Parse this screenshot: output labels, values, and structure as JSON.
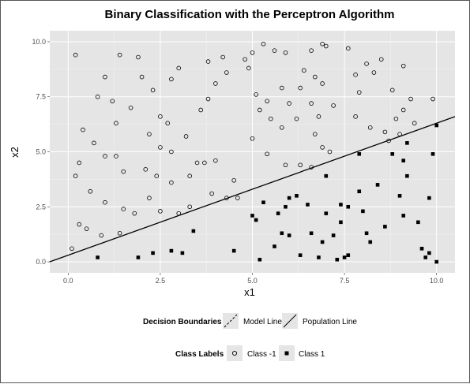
{
  "chart_data": {
    "type": "scatter",
    "title": "Binary Classification with the Perceptron Algorithm",
    "xlabel": "x1",
    "ylabel": "x2",
    "xlim": [
      -0.5,
      10.5
    ],
    "ylim": [
      -0.5,
      10.5
    ],
    "x_ticks": [
      0.0,
      2.5,
      5.0,
      7.5,
      10.0
    ],
    "y_ticks": [
      0.0,
      2.5,
      5.0,
      7.5,
      10.0
    ],
    "x_tick_labels": [
      "0.0",
      "2.5",
      "5.0",
      "7.5",
      "10.0"
    ],
    "y_tick_labels": [
      "0.0",
      "2.5",
      "5.0",
      "7.5",
      "10.0"
    ],
    "grid": true,
    "background": "#e5e5e5",
    "lines": [
      {
        "name": "Population Line",
        "style": "solid",
        "slope": 0.6,
        "intercept": 0.3,
        "color": "#000000"
      }
    ],
    "legends": [
      {
        "title": "Decision Boundaries",
        "entries": [
          "Model Line",
          "Population Line"
        ],
        "placement": "bottom"
      },
      {
        "title": "Class Labels",
        "entries": [
          "Class -1",
          "Class 1"
        ],
        "placement": "bottom"
      }
    ],
    "series": [
      {
        "name": "Class -1",
        "marker": "open-circle",
        "points": [
          [
            0.2,
            9.4
          ],
          [
            1.0,
            8.4
          ],
          [
            0.8,
            7.5
          ],
          [
            1.2,
            7.3
          ],
          [
            1.3,
            6.3
          ],
          [
            1.7,
            7.0
          ],
          [
            1.4,
            9.4
          ],
          [
            1.9,
            9.3
          ],
          [
            0.4,
            6.0
          ],
          [
            0.7,
            5.4
          ],
          [
            0.3,
            4.5
          ],
          [
            0.2,
            3.9
          ],
          [
            0.6,
            3.2
          ],
          [
            1.0,
            4.8
          ],
          [
            1.3,
            4.8
          ],
          [
            1.5,
            4.1
          ],
          [
            1.0,
            2.7
          ],
          [
            1.5,
            2.4
          ],
          [
            1.8,
            2.2
          ],
          [
            0.1,
            0.6
          ],
          [
            0.3,
            1.7
          ],
          [
            0.5,
            1.5
          ],
          [
            0.9,
            1.2
          ],
          [
            1.4,
            1.3
          ],
          [
            2.0,
            8.4
          ],
          [
            2.3,
            7.8
          ],
          [
            2.5,
            6.6
          ],
          [
            2.7,
            6.3
          ],
          [
            2.8,
            8.3
          ],
          [
            3.0,
            8.8
          ],
          [
            2.2,
            5.8
          ],
          [
            2.5,
            5.2
          ],
          [
            2.8,
            5.0
          ],
          [
            3.2,
            5.7
          ],
          [
            2.1,
            4.2
          ],
          [
            2.4,
            3.9
          ],
          [
            2.8,
            3.6
          ],
          [
            2.2,
            2.9
          ],
          [
            2.5,
            2.3
          ],
          [
            3.0,
            2.2
          ],
          [
            3.3,
            2.5
          ],
          [
            3.5,
            4.5
          ],
          [
            3.3,
            3.9
          ],
          [
            3.7,
            4.5
          ],
          [
            3.8,
            7.4
          ],
          [
            4.0,
            8.1
          ],
          [
            4.2,
            9.3
          ],
          [
            3.8,
            9.1
          ],
          [
            4.3,
            8.6
          ],
          [
            3.6,
            6.9
          ],
          [
            4.0,
            4.6
          ],
          [
            4.3,
            2.9
          ],
          [
            3.9,
            3.1
          ],
          [
            4.5,
            3.7
          ],
          [
            4.6,
            2.9
          ],
          [
            4.8,
            9.2
          ],
          [
            5.0,
            9.5
          ],
          [
            5.3,
            9.9
          ],
          [
            5.6,
            9.6
          ],
          [
            5.9,
            9.5
          ],
          [
            4.9,
            8.8
          ],
          [
            5.1,
            7.6
          ],
          [
            5.4,
            7.3
          ],
          [
            5.8,
            7.9
          ],
          [
            6.0,
            7.2
          ],
          [
            6.3,
            7.9
          ],
          [
            5.2,
            6.9
          ],
          [
            5.5,
            6.5
          ],
          [
            5.8,
            6.1
          ],
          [
            6.2,
            6.5
          ],
          [
            5.0,
            5.6
          ],
          [
            5.4,
            4.9
          ],
          [
            5.9,
            4.4
          ],
          [
            6.4,
            8.7
          ],
          [
            6.6,
            9.6
          ],
          [
            6.9,
            9.9
          ],
          [
            7.0,
            9.8
          ],
          [
            6.7,
            8.4
          ],
          [
            6.9,
            8.1
          ],
          [
            6.6,
            7.2
          ],
          [
            6.8,
            6.6
          ],
          [
            7.2,
            7.1
          ],
          [
            6.7,
            5.8
          ],
          [
            6.9,
            5.2
          ],
          [
            7.1,
            5.0
          ],
          [
            6.3,
            4.4
          ],
          [
            6.6,
            4.3
          ],
          [
            7.6,
            9.7
          ],
          [
            7.8,
            8.5
          ],
          [
            8.1,
            9.0
          ],
          [
            7.9,
            7.7
          ],
          [
            8.3,
            8.6
          ],
          [
            7.8,
            6.6
          ],
          [
            8.2,
            6.1
          ],
          [
            8.6,
            5.9
          ],
          [
            8.5,
            9.2
          ],
          [
            8.8,
            7.8
          ],
          [
            9.1,
            8.9
          ],
          [
            8.9,
            6.5
          ],
          [
            9.3,
            7.4
          ],
          [
            8.7,
            5.5
          ],
          [
            9.1,
            6.9
          ],
          [
            9.9,
            7.4
          ],
          [
            9.0,
            5.8
          ],
          [
            9.4,
            6.3
          ]
        ]
      },
      {
        "name": "Class 1",
        "marker": "filled-square",
        "points": [
          [
            0.8,
            0.2
          ],
          [
            1.9,
            0.2
          ],
          [
            2.3,
            0.4
          ],
          [
            2.8,
            0.5
          ],
          [
            3.1,
            0.4
          ],
          [
            3.4,
            1.4
          ],
          [
            4.5,
            0.5
          ],
          [
            5.0,
            2.1
          ],
          [
            5.1,
            1.9
          ],
          [
            5.2,
            0.1
          ],
          [
            5.3,
            2.7
          ],
          [
            5.6,
            0.7
          ],
          [
            5.8,
            1.3
          ],
          [
            5.9,
            2.5
          ],
          [
            6.0,
            2.9
          ],
          [
            6.2,
            3.0
          ],
          [
            6.3,
            0.3
          ],
          [
            6.5,
            2.6
          ],
          [
            6.6,
            1.3
          ],
          [
            6.8,
            0.2
          ],
          [
            6.9,
            0.9
          ],
          [
            7.0,
            2.2
          ],
          [
            7.0,
            3.9
          ],
          [
            7.2,
            1.2
          ],
          [
            7.3,
            0.1
          ],
          [
            7.4,
            2.6
          ],
          [
            7.4,
            1.8
          ],
          [
            7.5,
            0.2
          ],
          [
            7.6,
            0.3
          ],
          [
            7.6,
            2.5
          ],
          [
            7.9,
            3.2
          ],
          [
            8.0,
            2.3
          ],
          [
            8.1,
            1.3
          ],
          [
            8.2,
            0.9
          ],
          [
            8.4,
            3.5
          ],
          [
            8.6,
            1.6
          ],
          [
            8.8,
            4.9
          ],
          [
            9.0,
            3.0
          ],
          [
            9.1,
            2.1
          ],
          [
            9.1,
            4.6
          ],
          [
            9.2,
            3.9
          ],
          [
            9.2,
            5.4
          ],
          [
            9.5,
            1.8
          ],
          [
            9.6,
            0.6
          ],
          [
            9.7,
            0.2
          ],
          [
            9.8,
            0.4
          ],
          [
            9.9,
            4.9
          ],
          [
            10.0,
            6.2
          ],
          [
            10.0,
            0.0
          ],
          [
            9.8,
            2.9
          ],
          [
            6.0,
            1.2
          ],
          [
            7.9,
            4.9
          ],
          [
            5.7,
            2.2
          ]
        ]
      }
    ]
  }
}
